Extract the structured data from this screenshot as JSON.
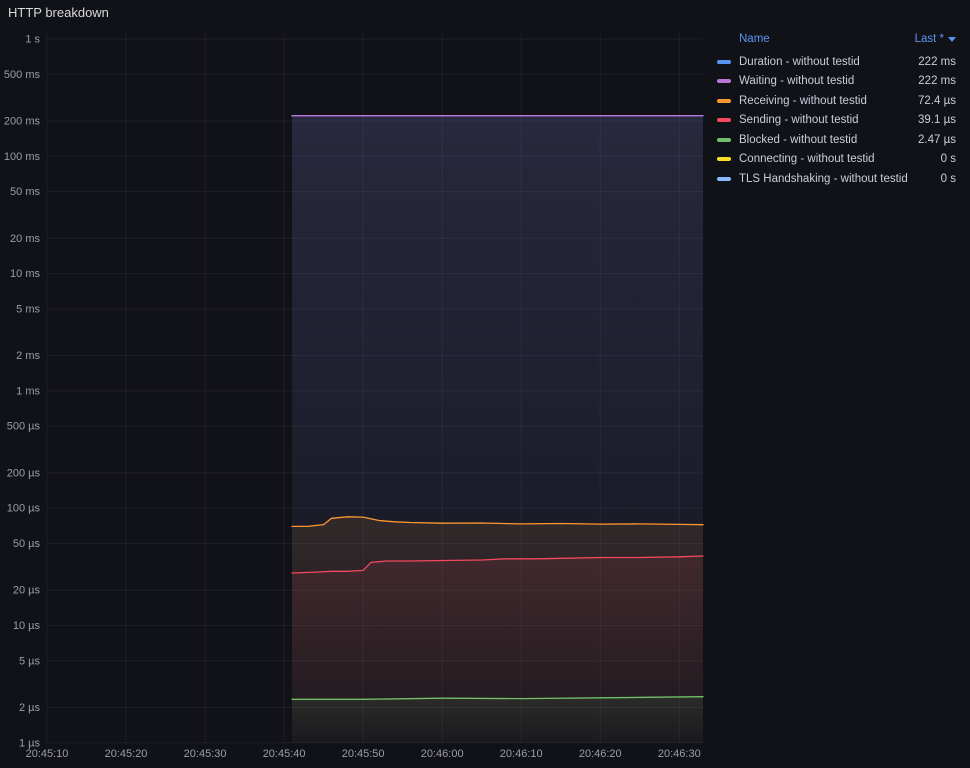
{
  "panel": {
    "title": "HTTP breakdown"
  },
  "legend": {
    "name_header": "Name",
    "last_header": "Last *",
    "sort_icon": "caret-down",
    "sort_direction": "descending"
  },
  "colors": {
    "background": "#111217",
    "grid": "rgba(204,204,220,0.07)",
    "axis_text": "#9d9da8",
    "legend_text": "#ccccdc",
    "link_blue": "#5794F2"
  },
  "chart_data": {
    "type": "line",
    "title": "HTTP breakdown",
    "y_scale": "log10",
    "y_unit": "seconds",
    "ylim": [
      1e-06,
      1
    ],
    "x_domain": [
      0,
      83
    ],
    "grid": true,
    "legend_position": "right-table",
    "y_ticks": [
      {
        "v": 1,
        "label": "1 s"
      },
      {
        "v": 0.5,
        "label": "500 ms"
      },
      {
        "v": 0.2,
        "label": "200 ms"
      },
      {
        "v": 0.1,
        "label": "100 ms"
      },
      {
        "v": 0.05,
        "label": "50 ms"
      },
      {
        "v": 0.02,
        "label": "20 ms"
      },
      {
        "v": 0.01,
        "label": "10 ms"
      },
      {
        "v": 0.005,
        "label": "5 ms"
      },
      {
        "v": 0.002,
        "label": "2 ms"
      },
      {
        "v": 0.001,
        "label": "1 ms"
      },
      {
        "v": 0.0005,
        "label": "500 µs"
      },
      {
        "v": 0.0002,
        "label": "200 µs"
      },
      {
        "v": 0.0001,
        "label": "100 µs"
      },
      {
        "v": 5e-05,
        "label": "50 µs"
      },
      {
        "v": 2e-05,
        "label": "20 µs"
      },
      {
        "v": 1e-05,
        "label": "10 µs"
      },
      {
        "v": 5e-06,
        "label": "5 µs"
      },
      {
        "v": 2e-06,
        "label": "2 µs"
      },
      {
        "v": 1e-06,
        "label": "1 µs"
      }
    ],
    "x_ticks": [
      {
        "t": 0,
        "label": "20:45:10"
      },
      {
        "t": 10,
        "label": "20:45:20"
      },
      {
        "t": 20,
        "label": "20:45:30"
      },
      {
        "t": 30,
        "label": "20:45:40"
      },
      {
        "t": 40,
        "label": "20:45:50"
      },
      {
        "t": 50,
        "label": "20:46:00"
      },
      {
        "t": 60,
        "label": "20:46:10"
      },
      {
        "t": 70,
        "label": "20:46:20"
      },
      {
        "t": 80,
        "label": "20:46:30"
      }
    ],
    "series": [
      {
        "name": "Duration",
        "label": "Duration - without testid",
        "color": "#5794F2",
        "last": "222 ms",
        "points": [
          [
            31,
            0.2225
          ],
          [
            50,
            0.2225
          ],
          [
            70,
            0.2224
          ],
          [
            83,
            0.2224
          ]
        ]
      },
      {
        "name": "Waiting",
        "label": "Waiting - without testid",
        "color": "#B877D9",
        "last": "222 ms",
        "points": [
          [
            31,
            0.222
          ],
          [
            50,
            0.222
          ],
          [
            70,
            0.222
          ],
          [
            83,
            0.222
          ]
        ]
      },
      {
        "name": "Receiving",
        "label": "Receiving - without testid",
        "color": "#FF9830",
        "last": "72.4 µs",
        "points": [
          [
            31,
            7e-05
          ],
          [
            33,
            7e-05
          ],
          [
            35,
            7.25e-05
          ],
          [
            36,
            8.2e-05
          ],
          [
            38,
            8.45e-05
          ],
          [
            40,
            8.4e-05
          ],
          [
            42,
            7.85e-05
          ],
          [
            44,
            7.65e-05
          ],
          [
            46,
            7.55e-05
          ],
          [
            50,
            7.45e-05
          ],
          [
            55,
            7.48e-05
          ],
          [
            60,
            7.35e-05
          ],
          [
            65,
            7.4e-05
          ],
          [
            70,
            7.32e-05
          ],
          [
            75,
            7.35e-05
          ],
          [
            80,
            7.28e-05
          ],
          [
            83,
            7.24e-05
          ]
        ]
      },
      {
        "name": "Sending",
        "label": "Sending - without testid",
        "color": "#F2495C",
        "last": "39.1 µs",
        "points": [
          [
            31,
            2.8e-05
          ],
          [
            34,
            2.85e-05
          ],
          [
            36,
            2.9e-05
          ],
          [
            38,
            2.9e-05
          ],
          [
            40,
            2.95e-05
          ],
          [
            41,
            3.45e-05
          ],
          [
            43,
            3.55e-05
          ],
          [
            46,
            3.55e-05
          ],
          [
            50,
            3.58e-05
          ],
          [
            55,
            3.62e-05
          ],
          [
            58,
            3.7e-05
          ],
          [
            62,
            3.7e-05
          ],
          [
            66,
            3.75e-05
          ],
          [
            70,
            3.8e-05
          ],
          [
            75,
            3.8e-05
          ],
          [
            80,
            3.85e-05
          ],
          [
            83,
            3.91e-05
          ]
        ]
      },
      {
        "name": "Blocked",
        "label": "Blocked - without testid",
        "color": "#73BF69",
        "last": "2.47 µs",
        "points": [
          [
            31,
            2.35e-06
          ],
          [
            40,
            2.35e-06
          ],
          [
            50,
            2.4e-06
          ],
          [
            60,
            2.38e-06
          ],
          [
            70,
            2.42e-06
          ],
          [
            77,
            2.45e-06
          ],
          [
            83,
            2.47e-06
          ]
        ]
      },
      {
        "name": "Connecting",
        "label": "Connecting - without testid",
        "color": "#FADE2A",
        "last": "0 s",
        "points": []
      },
      {
        "name": "TLS Handshaking",
        "label": "TLS Handshaking - without testid",
        "color": "#8AB8FF",
        "last": "0 s",
        "points": []
      }
    ]
  }
}
